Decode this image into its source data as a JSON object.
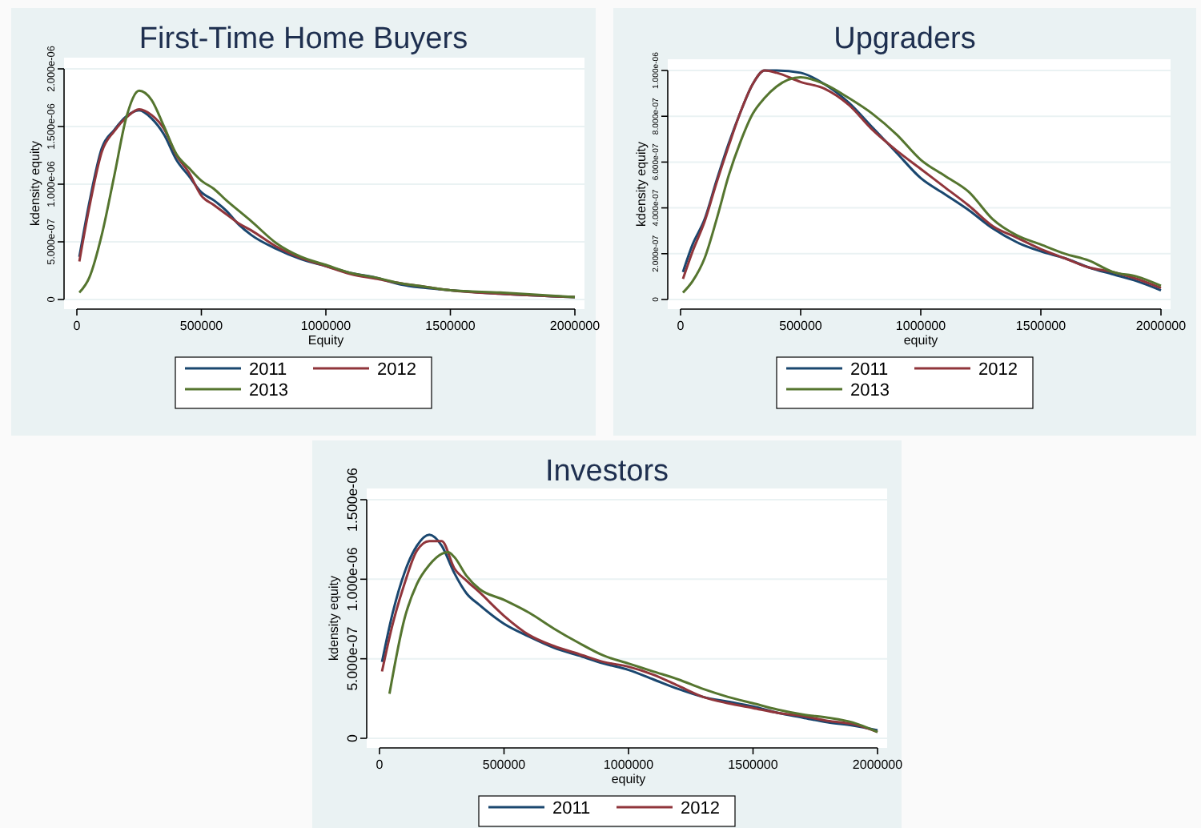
{
  "chart_data": [
    {
      "type": "line",
      "title": "First-Time Home Buyers",
      "xlabel": "Equity",
      "ylabel": "kdensity equity",
      "grid": "y",
      "legend": "bottom",
      "xlim": [
        0,
        2000000
      ],
      "xticks": [
        0,
        500000,
        1000000,
        1500000,
        2000000
      ],
      "ylim": [
        0,
        2e-06
      ],
      "yticks": [
        {
          "value": 0,
          "label": "0"
        },
        {
          "value": 5e-07,
          "label": "5.000e-07"
        },
        {
          "value": 1e-06,
          "label": "1.000e-06"
        },
        {
          "value": 1.5e-06,
          "label": "1.500e-06"
        },
        {
          "value": 2e-06,
          "label": "2.000e-06"
        }
      ],
      "x": [
        10000,
        50000,
        100000,
        150000,
        200000,
        250000,
        300000,
        350000,
        400000,
        450000,
        500000,
        550000,
        600000,
        650000,
        700000,
        800000,
        900000,
        1000000,
        1100000,
        1200000,
        1300000,
        1400000,
        1500000,
        1700000,
        2000000
      ],
      "series": [
        {
          "name": "2011",
          "color": "#1a476f",
          "values": [
            3.7e-07,
            8.4e-07,
            1.31e-06,
            1.47e-06,
            1.59e-06,
            1.64e-06,
            1.57e-06,
            1.43e-06,
            1.21e-06,
            1.07e-06,
            9.3e-07,
            8.6e-07,
            7.7e-07,
            6.5e-07,
            5.6e-07,
            4.4e-07,
            3.5e-07,
            2.9e-07,
            2.3e-07,
            1.9e-07,
            1.3e-07,
            1e-07,
            8e-08,
            5e-08,
            2e-08
          ]
        },
        {
          "name": "2012",
          "color": "#90353b",
          "values": [
            3.3e-07,
            8e-07,
            1.28e-06,
            1.46e-06,
            1.58e-06,
            1.65e-06,
            1.6e-06,
            1.48e-06,
            1.25e-06,
            1.1e-06,
            9e-07,
            8.2e-07,
            7.4e-07,
            6.6e-07,
            6e-07,
            4.6e-07,
            3.6e-07,
            2.9e-07,
            2.2e-07,
            1.8e-07,
            1.4e-07,
            1.1e-07,
            8e-08,
            5e-08,
            2e-08
          ]
        },
        {
          "name": "2013",
          "color": "#55752f",
          "values": [
            6e-08,
            1.9e-07,
            5.6e-07,
            1.07e-06,
            1.59e-06,
            1.81e-06,
            1.73e-06,
            1.5e-06,
            1.26e-06,
            1.14e-06,
            1.03e-06,
            9.6e-07,
            8.6e-07,
            7.7e-07,
            6.8e-07,
            4.9e-07,
            3.7e-07,
            3e-07,
            2.3e-07,
            1.9e-07,
            1.4e-07,
            1.1e-07,
            8e-08,
            6e-08,
            2e-08
          ]
        }
      ]
    },
    {
      "type": "line",
      "title": "Upgraders",
      "xlabel": "equity",
      "ylabel": "kdensity equity",
      "grid": "y",
      "legend": "bottom",
      "xlim": [
        0,
        2000000
      ],
      "xticks": [
        0,
        500000,
        1000000,
        1500000,
        2000000
      ],
      "ylim": [
        0,
        1e-06
      ],
      "yticks": [
        {
          "value": 0,
          "label": "0"
        },
        {
          "value": 2e-07,
          "label": "2.000e-07"
        },
        {
          "value": 4e-07,
          "label": "4.000e-07"
        },
        {
          "value": 6e-07,
          "label": "6.000e-07"
        },
        {
          "value": 8e-07,
          "label": "8.000e-07"
        },
        {
          "value": 1e-06,
          "label": "1.000e-06"
        }
      ],
      "x": [
        10000,
        50000,
        100000,
        150000,
        200000,
        250000,
        300000,
        350000,
        400000,
        500000,
        600000,
        700000,
        800000,
        900000,
        1000000,
        1100000,
        1200000,
        1300000,
        1400000,
        1500000,
        1600000,
        1700000,
        1800000,
        1900000,
        2000000
      ],
      "series": [
        {
          "name": "2011",
          "color": "#1a476f",
          "values": [
            1.2e-07,
            2.4e-07,
            3.5e-07,
            5.2e-07,
            6.8e-07,
            8.2e-07,
            9.4e-07,
            1e-06,
            1e-06,
            9.9e-07,
            9.4e-07,
            8.6e-07,
            7.5e-07,
            6.4e-07,
            5.3e-07,
            4.6e-07,
            3.9e-07,
            3.1e-07,
            2.5e-07,
            2.1e-07,
            1.8e-07,
            1.4e-07,
            1.1e-07,
            8e-08,
            4e-08
          ]
        },
        {
          "name": "2012",
          "color": "#90353b",
          "values": [
            9e-08,
            2.1e-07,
            3.4e-07,
            5.1e-07,
            6.7e-07,
            8.2e-07,
            9.4e-07,
            1e-06,
            9.9e-07,
            9.5e-07,
            9.2e-07,
            8.5e-07,
            7.4e-07,
            6.5e-07,
            5.7e-07,
            4.9e-07,
            4.1e-07,
            3.2e-07,
            2.7e-07,
            2.2e-07,
            1.8e-07,
            1.4e-07,
            1.2e-07,
            9e-08,
            5e-08
          ]
        },
        {
          "name": "2013",
          "color": "#55752f",
          "values": [
            3e-08,
            8e-08,
            1.8e-07,
            3.5e-07,
            5.4e-07,
            6.9e-07,
            8.1e-07,
            8.8e-07,
            9.3e-07,
            9.7e-07,
            9.4e-07,
            8.8e-07,
            8.1e-07,
            7.2e-07,
            6.1e-07,
            5.4e-07,
            4.7e-07,
            3.5e-07,
            2.8e-07,
            2.4e-07,
            2e-07,
            1.7e-07,
            1.2e-07,
            1e-07,
            6e-08
          ]
        }
      ]
    },
    {
      "type": "line",
      "title": "Investors",
      "xlabel": "equity",
      "ylabel": "kdensity equity",
      "grid": "y",
      "legend": "bottom",
      "xlim": [
        0,
        2000000
      ],
      "xticks": [
        0,
        500000,
        1000000,
        1500000,
        2000000
      ],
      "ylim": [
        0,
        1.5e-06
      ],
      "yticks": [
        {
          "value": 0,
          "label": "0"
        },
        {
          "value": 5e-07,
          "label": "5.000e-07"
        },
        {
          "value": 1e-06,
          "label": "1.000e-06"
        },
        {
          "value": 1.5e-06,
          "label": "1.500e-06"
        }
      ],
      "x": [
        10000,
        50000,
        100000,
        150000,
        200000,
        250000,
        300000,
        350000,
        400000,
        500000,
        600000,
        700000,
        800000,
        900000,
        1000000,
        1100000,
        1200000,
        1300000,
        1400000,
        1500000,
        1600000,
        1700000,
        1800000,
        1900000,
        2000000
      ],
      "series": [
        {
          "name": "2011",
          "color": "#1a476f",
          "values": [
            4.8e-07,
            7.7e-07,
            1.04e-06,
            1.21e-06,
            1.28e-06,
            1.21e-06,
            1.04e-06,
            9.1e-07,
            8.4e-07,
            7.2e-07,
            6.4e-07,
            5.7e-07,
            5.2e-07,
            4.7e-07,
            4.3e-07,
            3.7e-07,
            3.1e-07,
            2.6e-07,
            2.3e-07,
            2e-07,
            1.6e-07,
            1.3e-07,
            1e-07,
            8e-08,
            5e-08
          ]
        },
        {
          "name": "2012",
          "color": "#90353b",
          "values": [
            4.2e-07,
            7e-07,
            9.7e-07,
            1.18e-06,
            1.24e-06,
            1.24e-06,
            1.07e-06,
            9.9e-07,
            9.2e-07,
            7.7e-07,
            6.5e-07,
            5.8e-07,
            5.3e-07,
            4.8e-07,
            4.5e-07,
            4e-07,
            3.3e-07,
            2.6e-07,
            2.2e-07,
            1.9e-07,
            1.6e-07,
            1.4e-07,
            1.1e-07,
            9e-08,
            4e-08
          ]
        },
        {
          "color": "#55752f",
          "x": [
            40000,
            100000,
            150000,
            200000,
            250000,
            275000,
            300000,
            350000,
            400000,
            500000,
            600000,
            700000,
            800000,
            900000,
            1000000,
            1100000,
            1200000,
            1300000,
            1400000,
            1500000,
            1600000,
            1700000,
            1800000,
            1900000,
            2000000
          ],
          "values": [
            2.8e-07,
            7.5e-07,
            9.7e-07,
            1.09e-06,
            1.16e-06,
            1.17e-06,
            1.14e-06,
            1.02e-06,
            9.4e-07,
            8.7e-07,
            7.9e-07,
            6.9e-07,
            6e-07,
            5.2e-07,
            4.7e-07,
            4.2e-07,
            3.7e-07,
            3.1e-07,
            2.6e-07,
            2.2e-07,
            1.8e-07,
            1.5e-07,
            1.3e-07,
            1e-07,
            4e-08
          ]
        }
      ]
    }
  ]
}
